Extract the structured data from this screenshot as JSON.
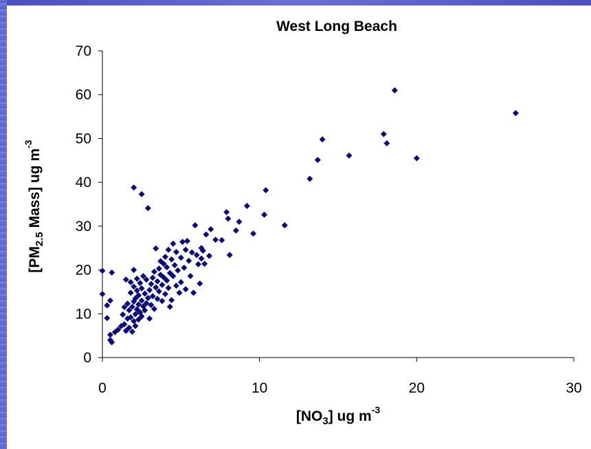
{
  "colors": {
    "frame": "#5a60cc",
    "marker": "#0a0a78",
    "background": "#ffffff"
  },
  "chart_data": {
    "type": "scatter",
    "title": "West Long Beach",
    "xlabel": {
      "pre": "[NO",
      "sub": "3",
      "mid": "] ug m",
      "sup": "-3"
    },
    "ylabel": {
      "pre": "[PM",
      "sub": "2.5",
      "mid": " Mass] ug m",
      "sup": "-3"
    },
    "xlim": [
      0,
      30
    ],
    "ylim": [
      0,
      70
    ],
    "xticks": [
      0,
      10,
      20,
      30
    ],
    "yticks": [
      0,
      10,
      20,
      30,
      40,
      50,
      60,
      70
    ],
    "grid": false,
    "marker": "diamond",
    "points": [
      [
        0.0,
        19.8
      ],
      [
        0.0,
        14.5
      ],
      [
        0.5,
        13.0
      ],
      [
        0.3,
        11.9
      ],
      [
        0.3,
        9.0
      ],
      [
        0.6,
        19.4
      ],
      [
        0.5,
        5.2
      ],
      [
        0.5,
        4.0
      ],
      [
        0.6,
        3.5
      ],
      [
        0.8,
        5.8
      ],
      [
        1.0,
        6.4
      ],
      [
        1.2,
        7.2
      ],
      [
        1.3,
        9.8
      ],
      [
        1.4,
        11.5
      ],
      [
        1.4,
        7.6
      ],
      [
        1.5,
        6.1
      ],
      [
        1.5,
        17.8
      ],
      [
        1.6,
        8.9
      ],
      [
        1.6,
        12.3
      ],
      [
        1.7,
        6.8
      ],
      [
        1.7,
        10.8
      ],
      [
        1.8,
        9.2
      ],
      [
        1.8,
        14.8
      ],
      [
        1.8,
        17.2
      ],
      [
        1.9,
        5.9
      ],
      [
        1.9,
        11.6
      ],
      [
        2.0,
        38.8
      ],
      [
        2.0,
        8.3
      ],
      [
        2.0,
        12.8
      ],
      [
        2.0,
        16.2
      ],
      [
        2.0,
        20.0
      ],
      [
        2.1,
        9.9
      ],
      [
        2.1,
        13.5
      ],
      [
        2.1,
        7.2
      ],
      [
        2.2,
        11.0
      ],
      [
        2.2,
        15.3
      ],
      [
        2.2,
        18.0
      ],
      [
        2.3,
        8.7
      ],
      [
        2.3,
        12.1
      ],
      [
        2.3,
        14.2
      ],
      [
        2.4,
        10.3
      ],
      [
        2.4,
        17.0
      ],
      [
        2.5,
        37.3
      ],
      [
        2.5,
        9.4
      ],
      [
        2.5,
        13.0
      ],
      [
        2.5,
        15.8
      ],
      [
        2.6,
        11.7
      ],
      [
        2.6,
        18.6
      ],
      [
        2.7,
        10.8
      ],
      [
        2.7,
        14.6
      ],
      [
        2.8,
        12.4
      ],
      [
        2.8,
        17.8
      ],
      [
        2.9,
        34.1
      ],
      [
        2.9,
        13.6
      ],
      [
        3.0,
        15.4
      ],
      [
        3.0,
        8.9
      ],
      [
        3.1,
        16.8
      ],
      [
        3.1,
        12.0
      ],
      [
        3.2,
        18.2
      ],
      [
        3.2,
        14.0
      ],
      [
        3.3,
        11.1
      ],
      [
        3.3,
        19.6
      ],
      [
        3.4,
        16.0
      ],
      [
        3.4,
        24.9
      ],
      [
        3.5,
        13.4
      ],
      [
        3.5,
        17.4
      ],
      [
        3.6,
        20.3
      ],
      [
        3.6,
        15.1
      ],
      [
        3.7,
        18.9
      ],
      [
        3.7,
        22.0
      ],
      [
        3.8,
        16.6
      ],
      [
        3.8,
        12.9
      ],
      [
        3.9,
        21.4
      ],
      [
        3.9,
        18.3
      ],
      [
        4.0,
        14.5
      ],
      [
        4.0,
        23.0
      ],
      [
        4.1,
        17.6
      ],
      [
        4.1,
        20.6
      ],
      [
        4.2,
        24.6
      ],
      [
        4.2,
        15.9
      ],
      [
        4.3,
        19.3
      ],
      [
        4.3,
        11.6
      ],
      [
        4.4,
        22.4
      ],
      [
        4.4,
        13.1
      ],
      [
        4.5,
        26.0
      ],
      [
        4.5,
        18.6
      ],
      [
        4.6,
        21.1
      ],
      [
        4.7,
        16.4
      ],
      [
        4.7,
        24.1
      ],
      [
        4.8,
        19.9
      ],
      [
        4.9,
        14.8
      ],
      [
        5.0,
        22.8
      ],
      [
        5.0,
        17.2
      ],
      [
        5.1,
        26.4
      ],
      [
        5.2,
        20.5
      ],
      [
        5.3,
        24.6
      ],
      [
        5.3,
        15.6
      ],
      [
        5.4,
        26.6
      ],
      [
        5.5,
        22.1
      ],
      [
        5.6,
        18.6
      ],
      [
        5.7,
        24.0
      ],
      [
        5.8,
        14.8
      ],
      [
        5.9,
        30.2
      ],
      [
        6.0,
        23.4
      ],
      [
        6.1,
        21.3
      ],
      [
        6.2,
        16.9
      ],
      [
        6.3,
        25.0
      ],
      [
        6.3,
        22.6
      ],
      [
        6.4,
        24.4
      ],
      [
        6.5,
        21.4
      ],
      [
        6.6,
        28.1
      ],
      [
        6.8,
        23.2
      ],
      [
        6.9,
        29.3
      ],
      [
        7.2,
        26.9
      ],
      [
        7.6,
        26.8
      ],
      [
        7.9,
        33.2
      ],
      [
        8.0,
        31.7
      ],
      [
        8.1,
        23.4
      ],
      [
        8.5,
        29.0
      ],
      [
        8.7,
        31.0
      ],
      [
        9.2,
        34.6
      ],
      [
        9.6,
        28.3
      ],
      [
        10.3,
        32.6
      ],
      [
        10.4,
        38.2
      ],
      [
        11.6,
        30.2
      ],
      [
        13.2,
        40.8
      ],
      [
        13.7,
        45.1
      ],
      [
        14.0,
        49.8
      ],
      [
        15.7,
        46.1
      ],
      [
        17.9,
        51.0
      ],
      [
        18.1,
        48.9
      ],
      [
        18.6,
        61.0
      ],
      [
        20.0,
        45.5
      ],
      [
        26.3,
        55.8
      ]
    ]
  }
}
